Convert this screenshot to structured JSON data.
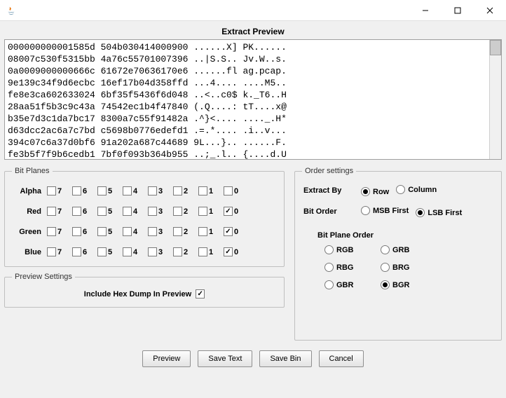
{
  "window": {
    "title": ""
  },
  "previewTitle": "Extract Preview",
  "hexLines": [
    "000000000001585d 504b030414000900 ......X] PK......",
    "08007c530f5315bb 4a76c55701007396 ..|S.S.. Jv.W..s.",
    "0a0009000000666c 61672e70636170e6 ......fl ag.pcap.",
    "9e139c34f9d6ecbc 16ef17b04d358ffd ...4.... ....M5..",
    "fe8e3ca602633024 6bf35f5436f6d048 ..<..c0$ k._T6..H",
    "28aa51f5b3c9c43a 74542ec1b4f47840 (.Q....: tT....x@",
    "b35e7d3c1da7bc17 8300a7c55f91482a .^}<.... ...._.H*",
    "d63dcc2ac6a7c7bd c5698b0776edefd1 .=.*.... .i..v...",
    "394c07c6a37d0bf6 91a202a687c44689 9L...}.. ......F.",
    "fe3b5f7f9b6cedb1 7bf0f093b364b955 ..;_.l.. {....d.U"
  ],
  "bitPlanes": {
    "legend": "Bit Planes",
    "bits": [
      "7",
      "6",
      "5",
      "4",
      "3",
      "2",
      "1",
      "0"
    ],
    "rows": [
      {
        "label": "Alpha",
        "checked": [
          false,
          false,
          false,
          false,
          false,
          false,
          false,
          false
        ]
      },
      {
        "label": "Red",
        "checked": [
          false,
          false,
          false,
          false,
          false,
          false,
          false,
          true
        ]
      },
      {
        "label": "Green",
        "checked": [
          false,
          false,
          false,
          false,
          false,
          false,
          false,
          true
        ]
      },
      {
        "label": "Blue",
        "checked": [
          false,
          false,
          false,
          false,
          false,
          false,
          false,
          true
        ]
      }
    ]
  },
  "previewSettings": {
    "legend": "Preview Settings",
    "includeHex": {
      "label": "Include Hex Dump In Preview",
      "checked": true
    }
  },
  "orderSettings": {
    "legend": "Order settings",
    "extractBy": {
      "label": "Extract By",
      "options": [
        "Row",
        "Column"
      ],
      "selected": "Row"
    },
    "bitOrder": {
      "label": "Bit Order",
      "options": [
        "MSB First",
        "LSB First"
      ],
      "selected": "LSB First"
    },
    "bitPlaneOrder": {
      "label": "Bit Plane Order",
      "options": [
        "RGB",
        "GRB",
        "RBG",
        "BRG",
        "GBR",
        "BGR"
      ],
      "selected": "BGR"
    }
  },
  "buttons": {
    "preview": "Preview",
    "saveText": "Save Text",
    "saveBin": "Save Bin",
    "cancel": "Cancel"
  }
}
